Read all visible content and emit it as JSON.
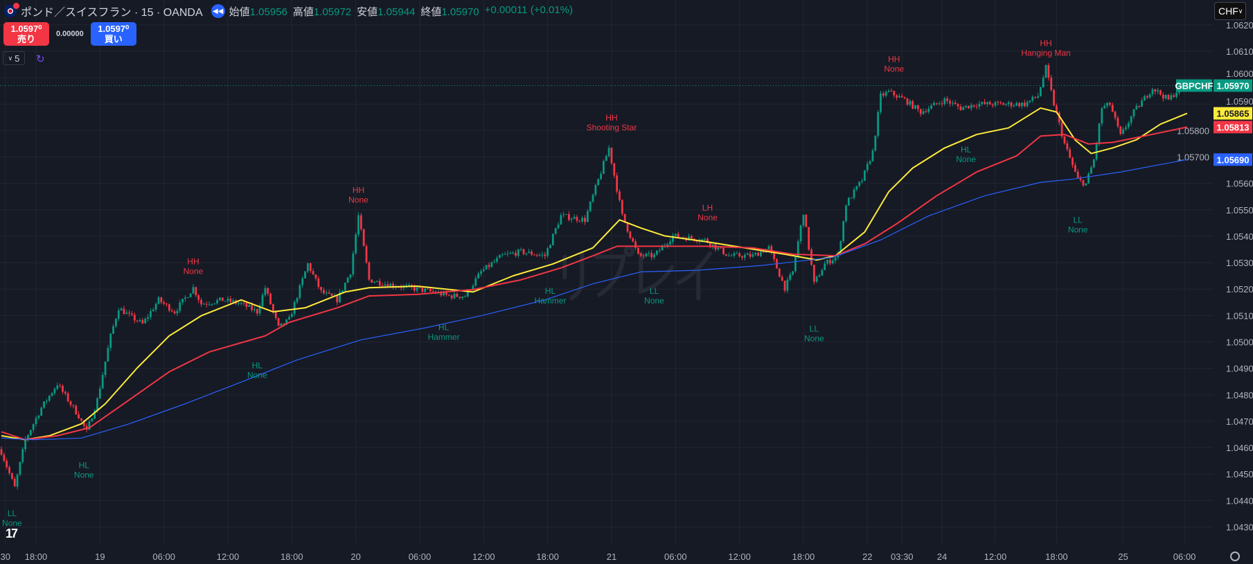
{
  "header": {
    "title": "ポンド／スイスフラン · 15 · OANDA",
    "ohlc": [
      {
        "label": "始値",
        "value": "1.05956"
      },
      {
        "label": "高値",
        "value": "1.05972"
      },
      {
        "label": "安値",
        "value": "1.05944"
      },
      {
        "label": "終値",
        "value": "1.05970"
      }
    ],
    "change": "+0.00011 (+0.01%)"
  },
  "trade": {
    "sell_price": "1.0597⁰",
    "sell_label": "売り",
    "spread": "0.00000",
    "buy_price": "1.0597⁰",
    "buy_label": "買い"
  },
  "replay": {
    "speed": "5",
    "watermark": "リプレイ"
  },
  "currency": "CHF",
  "colors": {
    "bg": "#161a25",
    "up": "#089981",
    "down": "#f23645",
    "ma_fast": "#ffeb3b",
    "ma_mid": "#f23645",
    "ma_slow": "#2962ff",
    "grid": "#222631"
  },
  "chart_data": {
    "type": "candlestick",
    "symbol": "GBPCHF",
    "last_price": 1.0597,
    "last_price_label": "1.05970",
    "ma_labels": {
      "fast": "1.05865",
      "mid": "1.05813",
      "slow": "1.05690"
    },
    "ylim": [
      1.0424,
      1.0628
    ],
    "y_ticks": [
      "1.06200",
      "1.06100",
      "1.06000",
      "1.05900",
      "1.05800",
      "1.05700",
      "1.05600",
      "1.05500",
      "1.05400",
      "1.05300",
      "1.05200",
      "1.05100",
      "1.05000",
      "1.04900",
      "1.04800",
      "1.04700",
      "1.04600",
      "1.04500",
      "1.04400",
      "1.04300"
    ],
    "x_ticks": [
      [
        "30",
        1.5
      ],
      [
        "18:00",
        13
      ],
      [
        "19",
        37
      ],
      [
        "06:00",
        61
      ],
      [
        "12:00",
        85
      ],
      [
        "18:00",
        109
      ],
      [
        "20",
        133
      ],
      [
        "06:00",
        157
      ],
      [
        "12:00",
        181
      ],
      [
        "18:00",
        205
      ],
      [
        "21",
        229
      ],
      [
        "06:00",
        253
      ],
      [
        "12:00",
        277
      ],
      [
        "18:00",
        301
      ],
      [
        "22",
        325
      ],
      [
        "03:30",
        338
      ],
      [
        "24",
        353
      ],
      [
        "12:00",
        373
      ],
      [
        "18:00",
        396
      ],
      [
        "25",
        421
      ],
      [
        "06:00",
        444
      ]
    ],
    "close_path": [
      [
        0,
        1.04584
      ],
      [
        5,
        1.04448
      ],
      [
        9,
        1.0463
      ],
      [
        15,
        1.04751
      ],
      [
        21,
        1.04841
      ],
      [
        29,
        1.0472
      ],
      [
        32,
        1.0466
      ],
      [
        36,
        1.04781
      ],
      [
        41,
        1.05023
      ],
      [
        44,
        1.05129
      ],
      [
        48,
        1.05099
      ],
      [
        53,
        1.05068
      ],
      [
        59,
        1.05159
      ],
      [
        65,
        1.05114
      ],
      [
        72,
        1.05205
      ],
      [
        75,
        1.05144
      ],
      [
        83,
        1.05159
      ],
      [
        90,
        1.05144
      ],
      [
        96,
        1.05114
      ],
      [
        99,
        1.05205
      ],
      [
        104,
        1.05053
      ],
      [
        108,
        1.05084
      ],
      [
        115,
        1.05295
      ],
      [
        120,
        1.05189
      ],
      [
        126,
        1.05159
      ],
      [
        131,
        1.05265
      ],
      [
        134,
        1.05477
      ],
      [
        138,
        1.05235
      ],
      [
        144,
        1.0522
      ],
      [
        153,
        1.05205
      ],
      [
        162,
        1.05189
      ],
      [
        168,
        1.05174
      ],
      [
        174,
        1.05174
      ],
      [
        180,
        1.05265
      ],
      [
        188,
        1.05326
      ],
      [
        195,
        1.05341
      ],
      [
        204,
        1.05326
      ],
      [
        210,
        1.05477
      ],
      [
        219,
        1.05462
      ],
      [
        224,
        1.05613
      ],
      [
        228,
        1.05734
      ],
      [
        233,
        1.05477
      ],
      [
        239,
        1.05326
      ],
      [
        245,
        1.05326
      ],
      [
        252,
        1.05401
      ],
      [
        264,
        1.05386
      ],
      [
        273,
        1.05326
      ],
      [
        282,
        1.05326
      ],
      [
        288,
        1.05356
      ],
      [
        294,
        1.05205
      ],
      [
        297,
        1.05265
      ],
      [
        301,
        1.05492
      ],
      [
        305,
        1.0522
      ],
      [
        309,
        1.05295
      ],
      [
        314,
        1.05326
      ],
      [
        317,
        1.05522
      ],
      [
        323,
        1.05613
      ],
      [
        327,
        1.05719
      ],
      [
        330,
        1.05931
      ],
      [
        333,
        1.05946
      ],
      [
        339,
        1.05916
      ],
      [
        345,
        1.0587
      ],
      [
        354,
        1.05916
      ],
      [
        360,
        1.05885
      ],
      [
        366,
        1.059
      ],
      [
        375,
        1.059
      ],
      [
        384,
        1.059
      ],
      [
        389,
        1.05931
      ],
      [
        392,
        1.06037
      ],
      [
        395,
        1.059
      ],
      [
        399,
        1.05749
      ],
      [
        404,
        1.05613
      ],
      [
        407,
        1.05598
      ],
      [
        410,
        1.05689
      ],
      [
        413,
        1.05885
      ],
      [
        416,
        1.059
      ],
      [
        420,
        1.05779
      ],
      [
        425,
        1.0587
      ],
      [
        432,
        1.05961
      ],
      [
        438,
        1.05916
      ],
      [
        443,
        1.0597
      ]
    ],
    "ma_fast": [
      [
        0,
        1.04645
      ],
      [
        9,
        1.0463
      ],
      [
        18,
        1.04645
      ],
      [
        30,
        1.0469
      ],
      [
        39,
        1.04766
      ],
      [
        51,
        1.04902
      ],
      [
        63,
        1.05023
      ],
      [
        75,
        1.05099
      ],
      [
        90,
        1.05159
      ],
      [
        102,
        1.05114
      ],
      [
        114,
        1.05129
      ],
      [
        129,
        1.05189
      ],
      [
        138,
        1.05205
      ],
      [
        156,
        1.05211
      ],
      [
        177,
        1.05189
      ],
      [
        192,
        1.0525
      ],
      [
        207,
        1.05295
      ],
      [
        222,
        1.05356
      ],
      [
        232,
        1.05462
      ],
      [
        240,
        1.05431
      ],
      [
        249,
        1.05401
      ],
      [
        264,
        1.0538
      ],
      [
        279,
        1.05356
      ],
      [
        294,
        1.05332
      ],
      [
        306,
        1.0531
      ],
      [
        313,
        1.05326
      ],
      [
        324,
        1.05416
      ],
      [
        333,
        1.05568
      ],
      [
        342,
        1.05658
      ],
      [
        354,
        1.05734
      ],
      [
        366,
        1.05785
      ],
      [
        378,
        1.0581
      ],
      [
        390,
        1.05885
      ],
      [
        396,
        1.0587
      ],
      [
        403,
        1.05764
      ],
      [
        409,
        1.05713
      ],
      [
        417,
        1.05734
      ],
      [
        426,
        1.05765
      ],
      [
        435,
        1.05824
      ],
      [
        445,
        1.05865
      ]
    ],
    "ma_mid": [
      [
        0,
        1.0466
      ],
      [
        9,
        1.0463
      ],
      [
        21,
        1.04645
      ],
      [
        33,
        1.04675
      ],
      [
        48,
        1.04781
      ],
      [
        63,
        1.04887
      ],
      [
        78,
        1.04962
      ],
      [
        99,
        1.05023
      ],
      [
        108,
        1.05074
      ],
      [
        126,
        1.05129
      ],
      [
        138,
        1.05174
      ],
      [
        156,
        1.0518
      ],
      [
        177,
        1.05198
      ],
      [
        195,
        1.05235
      ],
      [
        210,
        1.0528
      ],
      [
        222,
        1.05326
      ],
      [
        231,
        1.05362
      ],
      [
        246,
        1.05362
      ],
      [
        264,
        1.05362
      ],
      [
        282,
        1.05356
      ],
      [
        297,
        1.05332
      ],
      [
        313,
        1.05326
      ],
      [
        324,
        1.05371
      ],
      [
        336,
        1.05447
      ],
      [
        351,
        1.05553
      ],
      [
        366,
        1.05643
      ],
      [
        381,
        1.05704
      ],
      [
        390,
        1.05779
      ],
      [
        399,
        1.05785
      ],
      [
        408,
        1.05749
      ],
      [
        417,
        1.05755
      ],
      [
        426,
        1.05773
      ],
      [
        445,
        1.05813
      ]
    ],
    "ma_slow": [
      [
        0,
        1.04636
      ],
      [
        12,
        1.0463
      ],
      [
        30,
        1.04636
      ],
      [
        48,
        1.0469
      ],
      [
        69,
        1.04766
      ],
      [
        90,
        1.04848
      ],
      [
        111,
        1.04932
      ],
      [
        135,
        1.05008
      ],
      [
        159,
        1.05053
      ],
      [
        180,
        1.05099
      ],
      [
        204,
        1.05159
      ],
      [
        222,
        1.0522
      ],
      [
        240,
        1.05265
      ],
      [
        261,
        1.05271
      ],
      [
        285,
        1.05289
      ],
      [
        312,
        1.0532
      ],
      [
        330,
        1.05386
      ],
      [
        348,
        1.05477
      ],
      [
        369,
        1.05553
      ],
      [
        390,
        1.05604
      ],
      [
        402,
        1.05616
      ],
      [
        420,
        1.05643
      ],
      [
        445,
        1.0569
      ]
    ],
    "annotations": [
      {
        "bar": 4,
        "price": 1.04369,
        "l1": "LL",
        "l2": "None",
        "kind": "low"
      },
      {
        "bar": 31,
        "price": 1.04551,
        "l1": "HL",
        "l2": "None",
        "kind": "low"
      },
      {
        "bar": 72,
        "price": 1.05323,
        "l1": "HH",
        "l2": "None",
        "kind": "high"
      },
      {
        "bar": 96,
        "price": 1.04929,
        "l1": "HL",
        "l2": "None",
        "kind": "low"
      },
      {
        "bar": 134,
        "price": 1.05592,
        "l1": "HH",
        "l2": "None",
        "kind": "high"
      },
      {
        "bar": 166,
        "price": 1.05074,
        "l1": "HL",
        "l2": "Hammer",
        "kind": "low"
      },
      {
        "bar": 206,
        "price": 1.05211,
        "l1": "HL",
        "l2": "Hammer",
        "kind": "low"
      },
      {
        "bar": 229,
        "price": 1.05867,
        "l1": "HH",
        "l2": "Shooting Star",
        "kind": "high"
      },
      {
        "bar": 245,
        "price": 1.05211,
        "l1": "LL",
        "l2": "None",
        "kind": "low"
      },
      {
        "bar": 265,
        "price": 1.05525,
        "l1": "LH",
        "l2": "None",
        "kind": "high"
      },
      {
        "bar": 305,
        "price": 1.05068,
        "l1": "LL",
        "l2": "None",
        "kind": "low"
      },
      {
        "bar": 335,
        "price": 1.06088,
        "l1": "HH",
        "l2": "None",
        "kind": "high"
      },
      {
        "bar": 362,
        "price": 1.05746,
        "l1": "HL",
        "l2": "None",
        "kind": "low"
      },
      {
        "bar": 392,
        "price": 1.06149,
        "l1": "HH",
        "l2": "Hanging Man",
        "kind": "high"
      },
      {
        "bar": 404,
        "price": 1.0548,
        "l1": "LL",
        "l2": "None",
        "kind": "low"
      }
    ]
  }
}
